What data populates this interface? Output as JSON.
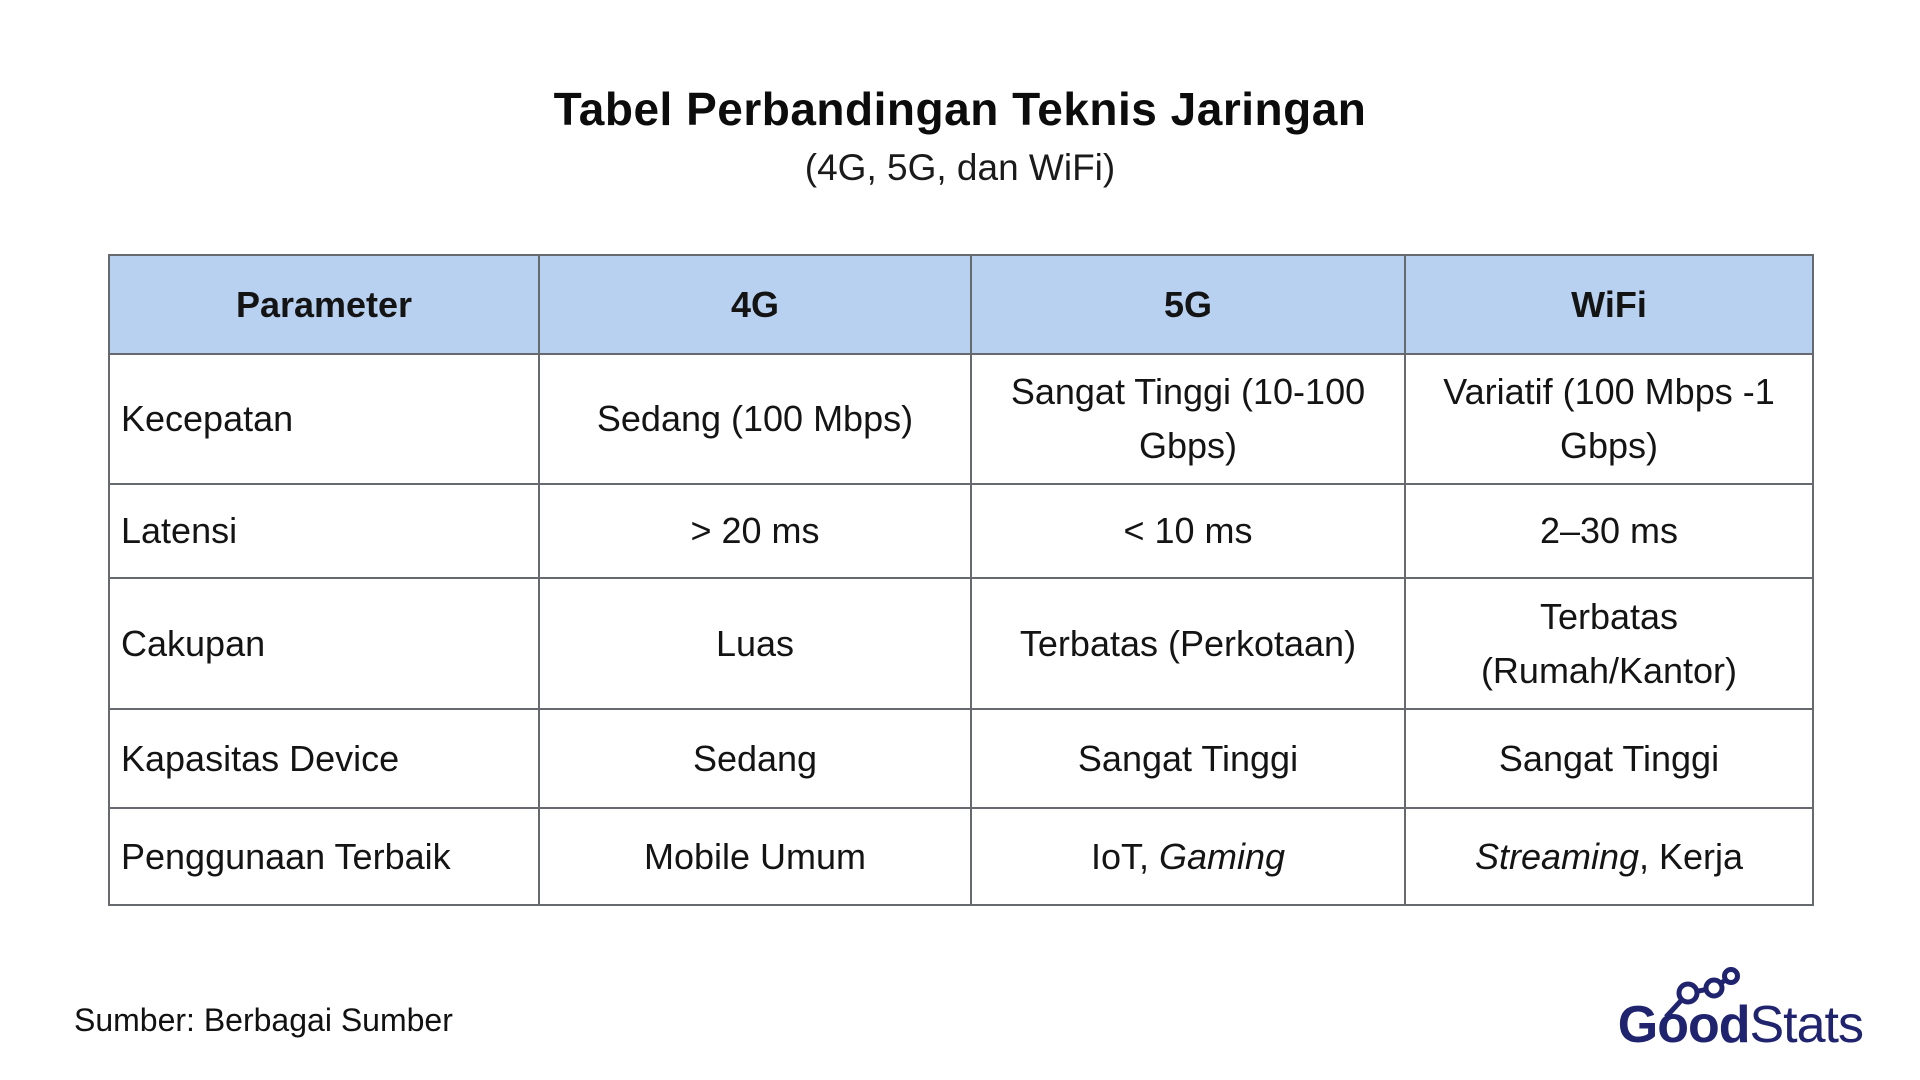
{
  "title": "Tabel Perbandingan Teknis Jaringan",
  "subtitle": "(4G, 5G, dan WiFi)",
  "table": {
    "headers": [
      "Parameter",
      "4G",
      "5G",
      "WiFi"
    ],
    "rows": [
      {
        "cells": [
          [
            {
              "text": "Kecepatan"
            }
          ],
          [
            {
              "text": "Sedang (100 Mbps)"
            }
          ],
          [
            {
              "text": "Sangat Tinggi (10-100 Gbps)"
            }
          ],
          [
            {
              "text": "Variatif (100 Mbps -1 Gbps)"
            }
          ]
        ]
      },
      {
        "cells": [
          [
            {
              "text": "Latensi"
            }
          ],
          [
            {
              "text": "> 20 ms"
            }
          ],
          [
            {
              "text": "< 10 ms"
            }
          ],
          [
            {
              "text": "2–30 ms"
            }
          ]
        ]
      },
      {
        "cells": [
          [
            {
              "text": "Cakupan"
            }
          ],
          [
            {
              "text": "Luas"
            }
          ],
          [
            {
              "text": "Terbatas (Perkotaan)"
            }
          ],
          [
            {
              "text": "Terbatas (Rumah/Kantor)"
            }
          ]
        ]
      },
      {
        "cells": [
          [
            {
              "text": "Kapasitas Device"
            }
          ],
          [
            {
              "text": "Sedang"
            }
          ],
          [
            {
              "text": "Sangat Tinggi"
            }
          ],
          [
            {
              "text": "Sangat Tinggi"
            }
          ]
        ]
      },
      {
        "cells": [
          [
            {
              "text": "Penggunaan Terbaik"
            }
          ],
          [
            {
              "text": "Mobile Umum"
            }
          ],
          [
            {
              "text": "IoT, "
            },
            {
              "text": "Gaming",
              "italic": true
            }
          ],
          [
            {
              "text": "Streaming",
              "italic": true
            },
            {
              "text": ", Kerja"
            }
          ]
        ]
      }
    ]
  },
  "footer": {
    "source": "Sumber: Berbagai Sumber"
  },
  "logo": {
    "part_bold": "Good",
    "part_light": "Stats",
    "chart_icon": "rising-line-chart-icon"
  },
  "colors": {
    "header_bg": "#b9d1f0",
    "grid_border": "#666a6e",
    "outer_border": "#4a4e52",
    "text": "#141414",
    "logo_navy": "#20246f"
  }
}
